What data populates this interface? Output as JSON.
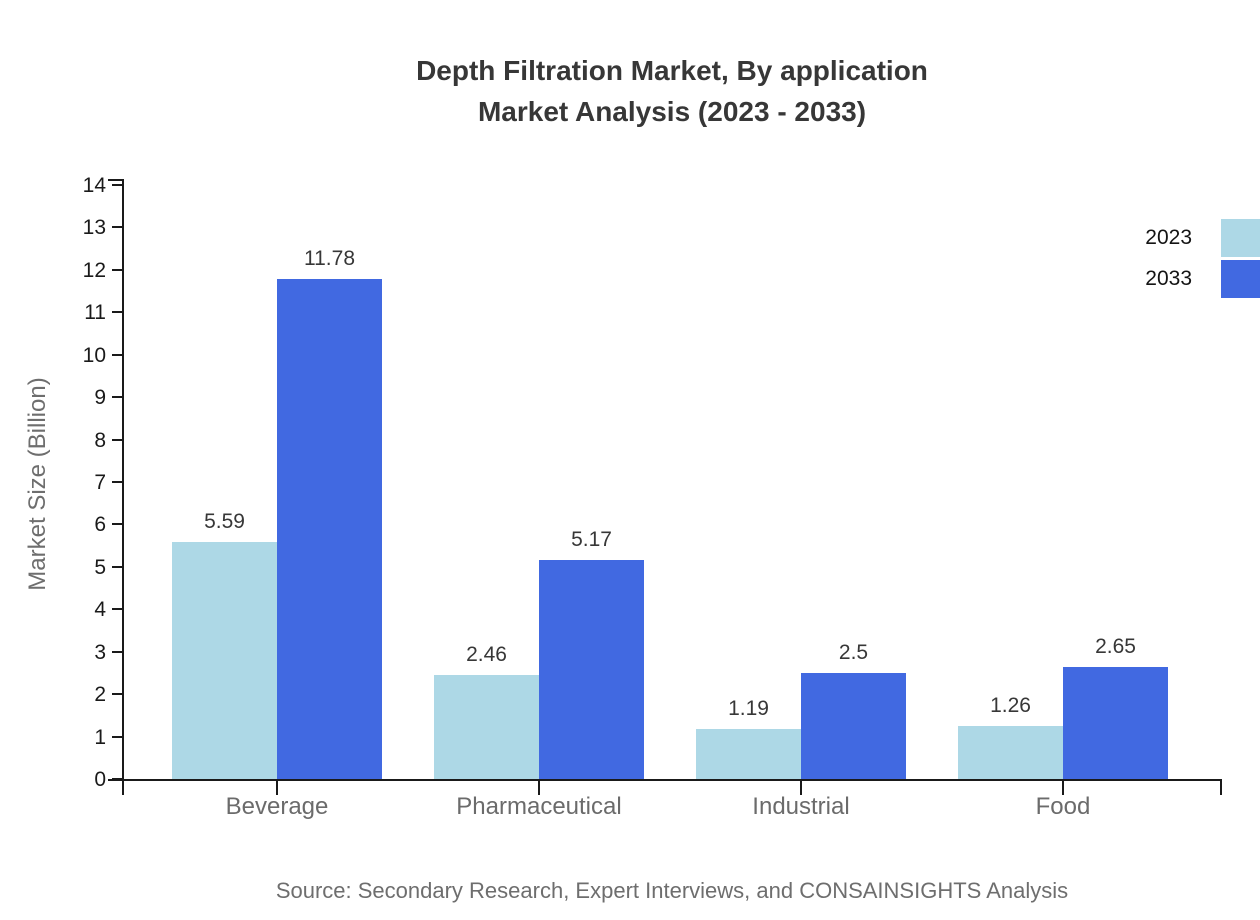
{
  "title": {
    "line1": "Depth Filtration Market, By application",
    "line2": "Market Analysis (2023 - 2033)"
  },
  "chart_data": {
    "type": "bar",
    "title": "Depth Filtration Market, By application Market Analysis (2023 - 2033)",
    "categories": [
      "Beverage",
      "Pharmaceutical",
      "Industrial",
      "Food"
    ],
    "series": [
      {
        "name": "2023",
        "color": "#ADD8E6",
        "values": [
          5.59,
          2.46,
          1.19,
          1.26
        ]
      },
      {
        "name": "2033",
        "color": "#4169E1",
        "values": [
          11.78,
          5.17,
          2.5,
          2.65
        ]
      }
    ],
    "xlabel": "",
    "ylabel": "Market Size (Billion)",
    "ylim": [
      0,
      14
    ],
    "ytick_step": 1,
    "grid": false,
    "legend_position": "top-right",
    "value_labels": true
  },
  "source": {
    "text": "Source: Secondary Research, Expert Interviews, and CONSAINSIGHTS Analysis"
  },
  "colors": {
    "background": "#ffffff",
    "title_text": "#373737",
    "axis": "#1a1a1a",
    "tick_label": "#1a1a1a",
    "category_label": "#6b6b6b",
    "value_label": "#373737",
    "muted_text": "#6e6e6e",
    "series_2023": "#ADD8E6",
    "series_2033": "#4169E1"
  }
}
